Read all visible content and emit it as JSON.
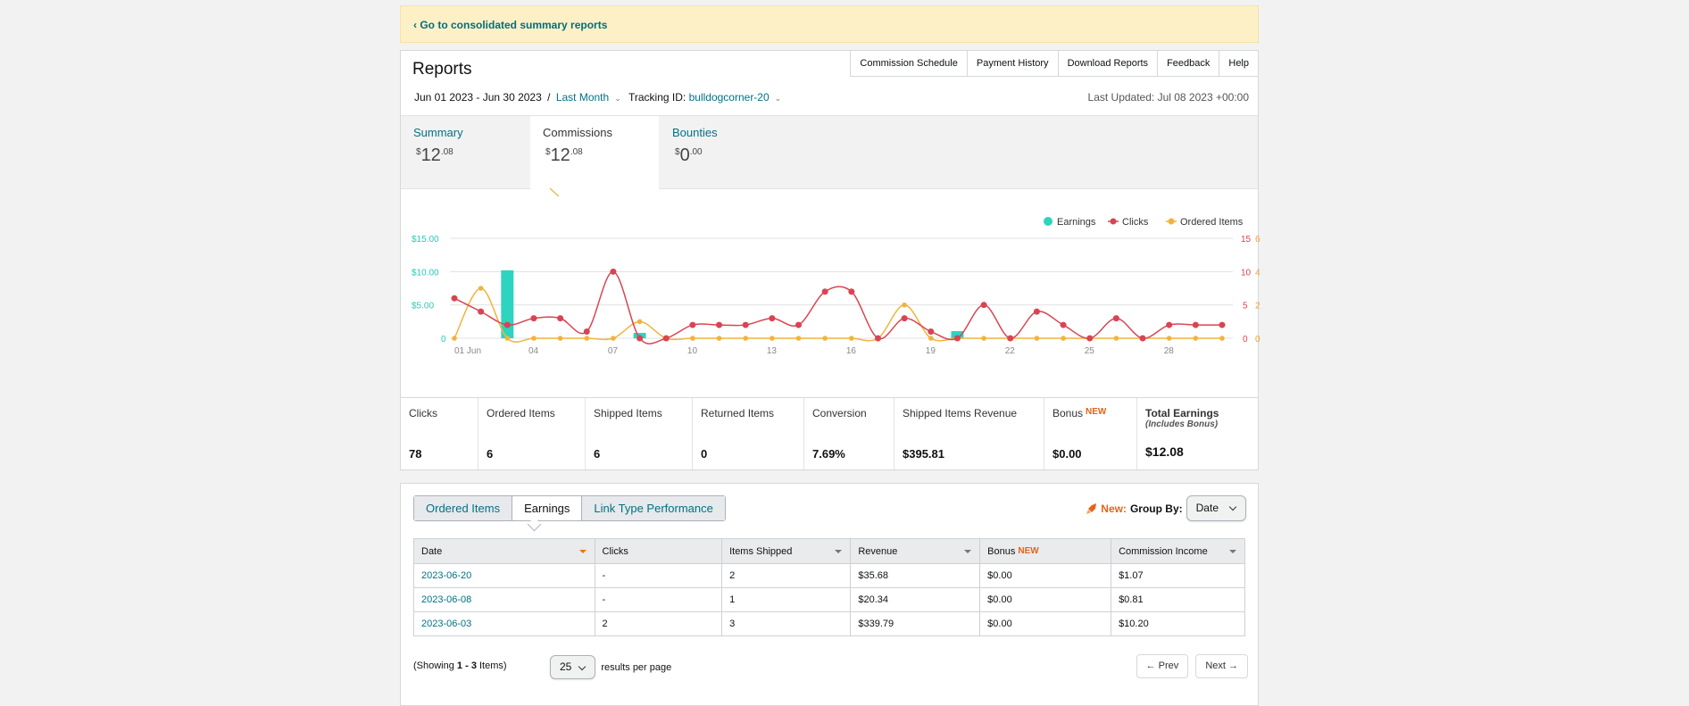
{
  "banner": {
    "link_label": "‹ Go to consolidated summary reports"
  },
  "report": {
    "title": "Reports",
    "nav": [
      "Commission Schedule",
      "Payment History",
      "Download Reports",
      "Feedback",
      "Help"
    ],
    "date_range": "Jun 01 2023 - Jun 30 2023",
    "range_sep": "/",
    "range_preset": "Last Month",
    "tracking_label": "Tracking ID:",
    "tracking_id": "bulldogcorner-20",
    "last_updated": "Last Updated: Jul 08 2023 +00:00"
  },
  "metric_tabs": [
    {
      "label": "Summary",
      "currency": "$",
      "whole": "12",
      "cents": ".08"
    },
    {
      "label": "Commissions",
      "currency": "$",
      "whole": "12",
      "cents": ".08"
    },
    {
      "label": "Bounties",
      "currency": "$",
      "whole": "0",
      "cents": ".00"
    }
  ],
  "chart_data": {
    "type": "line",
    "legend": [
      "Earnings",
      "Clicks",
      "Ordered Items"
    ],
    "legend_position": "top-right",
    "x": [
      1,
      2,
      3,
      4,
      5,
      6,
      7,
      8,
      9,
      10,
      11,
      12,
      13,
      14,
      15,
      16,
      17,
      18,
      19,
      20,
      21,
      22,
      23,
      24,
      25,
      26,
      27,
      28,
      29,
      30
    ],
    "x_tick_labels": [
      "01 Jun",
      "04",
      "07",
      "10",
      "13",
      "16",
      "19",
      "22",
      "25",
      "28"
    ],
    "x_ticks_at": [
      1,
      4,
      7,
      10,
      13,
      16,
      19,
      22,
      25,
      28
    ],
    "y_left_labels": [
      "$15.00",
      "$10.00",
      "$5.00",
      "0"
    ],
    "y_left_range": [
      0,
      15
    ],
    "y_right1_labels": [
      "15",
      "10",
      "5",
      "0"
    ],
    "y_right1_range": [
      0,
      15
    ],
    "y_right2_labels": [
      "6",
      "4",
      "2",
      "0"
    ],
    "y_right2_range": [
      0,
      6
    ],
    "grid": true,
    "colors": {
      "earnings": "#2dd4bf",
      "clicks": "#d94452",
      "ordered": "#f0b43c"
    },
    "series": [
      {
        "name": "Earnings",
        "type": "bar",
        "values": [
          0,
          0,
          10.2,
          0,
          0,
          0,
          0,
          0.81,
          0,
          0,
          0,
          0,
          0,
          0,
          0,
          0,
          0,
          0,
          0,
          1.07,
          0,
          0,
          0,
          0,
          0,
          0,
          0,
          0,
          0,
          0
        ]
      },
      {
        "name": "Clicks",
        "values": [
          6,
          4,
          2,
          3,
          3,
          1,
          10,
          0,
          0,
          2,
          2,
          2,
          3,
          2,
          7,
          7,
          0,
          3,
          1,
          0,
          5,
          0,
          4,
          2,
          0,
          3,
          0,
          2,
          2,
          2
        ]
      },
      {
        "name": "Ordered Items",
        "values": [
          0,
          3,
          0,
          0,
          0,
          0,
          0,
          1,
          0,
          0,
          0,
          0,
          0,
          0,
          0,
          0,
          0,
          2,
          0,
          0,
          0,
          0,
          0,
          0,
          0,
          0,
          0,
          0,
          0,
          0
        ]
      }
    ]
  },
  "stats": [
    {
      "label": "Clicks",
      "value": "78",
      "width": 87
    },
    {
      "label": "Ordered Items",
      "value": "6",
      "width": 120
    },
    {
      "label": "Shipped Items",
      "value": "6",
      "width": 120
    },
    {
      "label": "Returned Items",
      "value": "0",
      "width": 125
    },
    {
      "label": "Conversion",
      "value": "7.69%",
      "width": 101
    },
    {
      "label": "Shipped Items Revenue",
      "value": "$395.81",
      "width": 168
    },
    {
      "label": "Bonus",
      "badge": "NEW",
      "value": "$0.00",
      "width": 104
    },
    {
      "label": "Total Earnings",
      "sublabel": "(Includes Bonus)",
      "value": "$12.08",
      "width": 135
    }
  ],
  "table_tabs": [
    "Ordered Items",
    "Earnings",
    "Link Type Performance"
  ],
  "group_by": {
    "new_label": "New:",
    "label": "Group By:",
    "value": "Date"
  },
  "table": {
    "headers": [
      "Date",
      "Clicks",
      "Items Shipped",
      "Revenue",
      "Bonus",
      "Commission Income"
    ],
    "header_badge": "NEW",
    "rows": [
      [
        "2023-06-20",
        "-",
        "2",
        "$35.68",
        "$0.00",
        "$1.07"
      ],
      [
        "2023-06-08",
        "-",
        "1",
        "$20.34",
        "$0.00",
        "$0.81"
      ],
      [
        "2023-06-03",
        "2",
        "3",
        "$339.79",
        "$0.00",
        "$10.20"
      ]
    ]
  },
  "footer": {
    "showing_pre": "(Showing ",
    "showing_range": "1 - 3",
    "showing_post": " Items)",
    "per_page": "25",
    "per_page_label": "results per page",
    "prev": "←   Prev",
    "next": "Next   →"
  }
}
